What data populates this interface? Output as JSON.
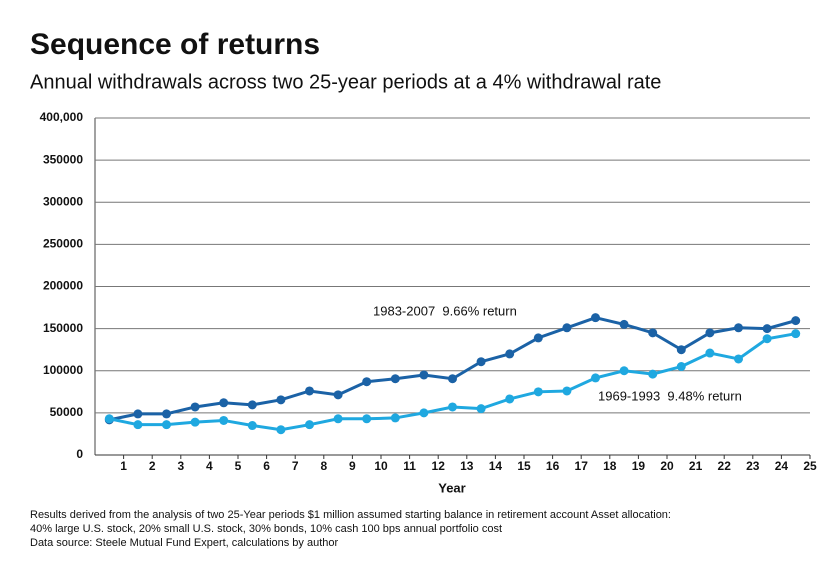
{
  "chart_data": {
    "type": "line",
    "title": "Sequence of returns",
    "subtitle": "Annual withdrawals across two 25-year periods at a 4% withdrawal rate",
    "x_label": "Year",
    "notes": [
      "Results derived from the analysis of two 25-Year periods $1 million assumed starting balance in retirement account Asset allocation:",
      "40% large U.S. stock, 20% small U.S. stock, 30% bonds, 10% cash 100 bps annual portfolio cost",
      "Data source:  Steele Mutual Fund Expert, calculations by author"
    ],
    "x": [
      0.5,
      1.5,
      2.5,
      3.5,
      4.5,
      5.5,
      6.5,
      7.5,
      8.5,
      9.5,
      10.5,
      11.5,
      12.5,
      13.5,
      14.5,
      15.5,
      16.5,
      17.5,
      18.5,
      19.5,
      20.5,
      21.5,
      22.5,
      23.5,
      24.5
    ],
    "xlim": [
      0,
      25
    ],
    "xticks": [
      1,
      2,
      3,
      4,
      5,
      6,
      7,
      8,
      9,
      10,
      11,
      12,
      13,
      14,
      15,
      16,
      17,
      18,
      19,
      20,
      21,
      22,
      23,
      24,
      25
    ],
    "ylim": [
      0,
      400000
    ],
    "yticks": [
      0,
      50000,
      100000,
      150000,
      200000,
      250000,
      300000,
      350000,
      {
        "value": 400000,
        "label": "400,000"
      }
    ],
    "grid": true,
    "series": [
      {
        "name": "1983-2007  9.66% return",
        "color": "#1b62a6",
        "values": [
          41700,
          48800,
          48800,
          57000,
          62000,
          59500,
          65500,
          76000,
          71400,
          87000,
          90500,
          95000,
          90500,
          110700,
          120000,
          139000,
          151000,
          163000,
          155000,
          145000,
          125000,
          145000,
          151000,
          150000,
          159500
        ]
      },
      {
        "name": "1969-1993  9.48% return",
        "color": "#1fa8e0",
        "values": [
          43000,
          36000,
          36000,
          39000,
          41000,
          35000,
          30000,
          36000,
          43000,
          43000,
          44000,
          50000,
          57000,
          55000,
          66500,
          75000,
          76000,
          91500,
          100000,
          96000,
          105000,
          121000,
          114000,
          138000,
          144000
        ]
      }
    ]
  }
}
